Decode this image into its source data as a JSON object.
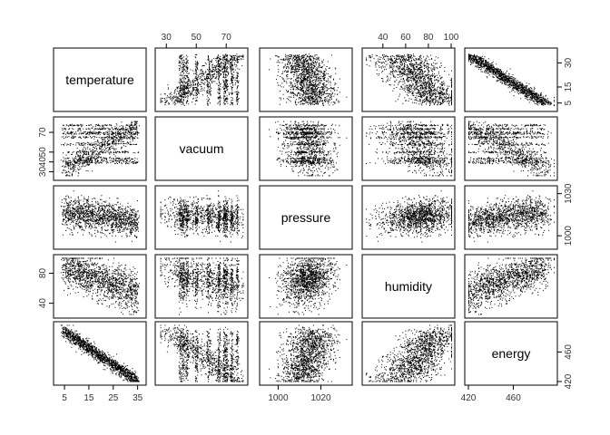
{
  "chart_data": {
    "type": "scatter",
    "variables": [
      "temperature",
      "vacuum",
      "pressure",
      "humidity",
      "energy"
    ],
    "axis_ticks": {
      "temperature": [
        5,
        15,
        25,
        35
      ],
      "temperature_right": [
        5,
        15,
        30
      ],
      "vacuum": [
        30,
        50,
        70
      ],
      "vacuum_left": [
        30,
        40,
        50,
        70
      ],
      "pressure": [
        1000,
        1020
      ],
      "pressure_right": [
        1000,
        1030
      ],
      "humidity": [
        40,
        60,
        80,
        100
      ],
      "humidity_left": [
        40,
        80
      ],
      "energy": [
        420,
        460
      ],
      "energy_right": [
        420,
        460
      ]
    },
    "ranges": {
      "temperature": [
        2,
        37
      ],
      "vacuum": [
        25,
        82
      ],
      "pressure": [
        993,
        1033
      ],
      "humidity": [
        25,
        100
      ],
      "energy": [
        420,
        496
      ]
    },
    "grid": false,
    "legend": "none"
  }
}
